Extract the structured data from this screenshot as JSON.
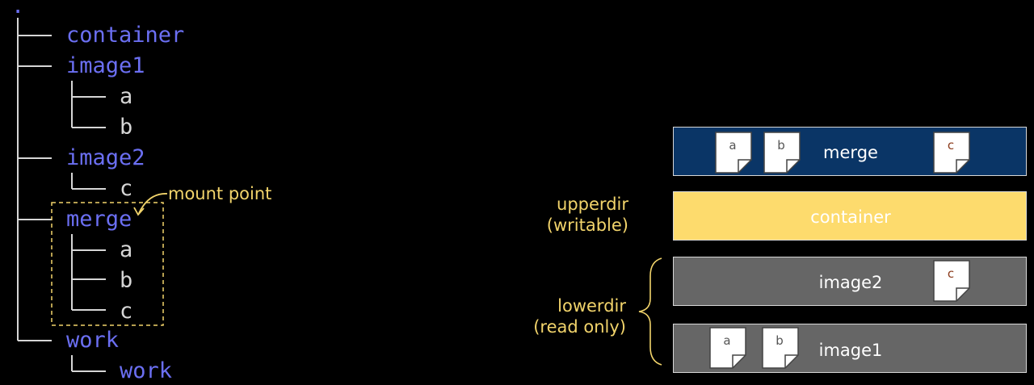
{
  "colors": {
    "background": "#000000",
    "directory": "#6b6ff2",
    "file": "#d6d6d6",
    "tree_line": "#d6d6d6",
    "annotation": "#f2d46b",
    "merge_layer": "#0a3566",
    "container_layer": "#fddb6d",
    "image_layer": "#666666"
  },
  "tree": {
    "root": ".",
    "entries": [
      {
        "label": "container",
        "kind": "dir"
      },
      {
        "label": "image1",
        "kind": "dir"
      },
      {
        "label": "a",
        "kind": "file"
      },
      {
        "label": "b",
        "kind": "file"
      },
      {
        "label": "image2",
        "kind": "dir"
      },
      {
        "label": "c",
        "kind": "file"
      },
      {
        "label": "merge",
        "kind": "dir"
      },
      {
        "label": "a",
        "kind": "file"
      },
      {
        "label": "b",
        "kind": "file"
      },
      {
        "label": "c",
        "kind": "file"
      },
      {
        "label": "work",
        "kind": "dir"
      },
      {
        "label": "work",
        "kind": "dir"
      }
    ],
    "mount_note": "mount point"
  },
  "layers": {
    "merge": {
      "label": "merge",
      "files": [
        "a",
        "b",
        "c"
      ]
    },
    "container": {
      "label": "container"
    },
    "image2": {
      "label": "image2",
      "files": [
        "c"
      ]
    },
    "image1": {
      "label": "image1",
      "files": [
        "a",
        "b"
      ]
    }
  },
  "labels": {
    "upperdir": "upperdir",
    "upperdir_note": "(writable)",
    "lowerdir": "lowerdir",
    "lowerdir_note": "(read only)"
  }
}
